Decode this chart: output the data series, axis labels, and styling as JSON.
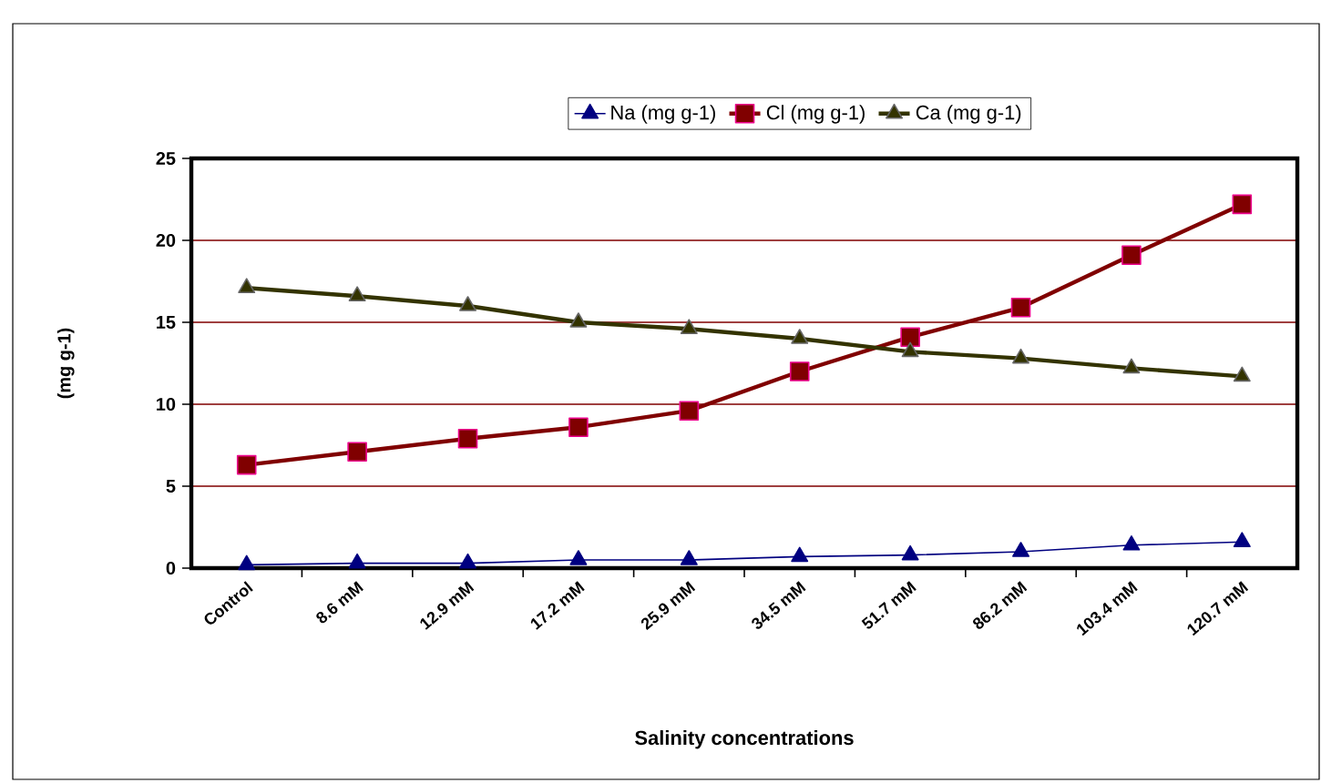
{
  "chart_data": {
    "type": "line",
    "xlabel": "Salinity concentrations",
    "ylabel": "(mg g-1)",
    "categories": [
      "Control",
      "8.6 mM",
      "12.9 mM",
      "17.2 mM",
      "25.9 mM",
      "34.5 mM",
      "51.7 mM",
      "86.2 mM",
      "103.4 mM",
      "120.7 mM"
    ],
    "series": [
      {
        "name": "Na  (mg g-1)",
        "color": "#000080",
        "marker": "triangle",
        "values": [
          0.2,
          0.3,
          0.3,
          0.5,
          0.5,
          0.7,
          0.8,
          1.0,
          1.4,
          1.6
        ]
      },
      {
        "name": "Cl (mg g-1)",
        "color": "#800000",
        "marker": "square",
        "values": [
          6.3,
          7.1,
          7.9,
          8.6,
          9.6,
          12.0,
          14.1,
          15.9,
          19.1,
          22.2
        ]
      },
      {
        "name": "Ca  (mg g-1)",
        "color": "#333300",
        "marker": "triangle",
        "values": [
          17.1,
          16.6,
          16.0,
          15.0,
          14.6,
          14.0,
          13.2,
          12.8,
          12.2,
          11.7
        ]
      }
    ],
    "ylim": [
      0,
      25
    ],
    "yticks": [
      0,
      5,
      10,
      15,
      20,
      25
    ],
    "grid": "y",
    "legend": "top"
  }
}
